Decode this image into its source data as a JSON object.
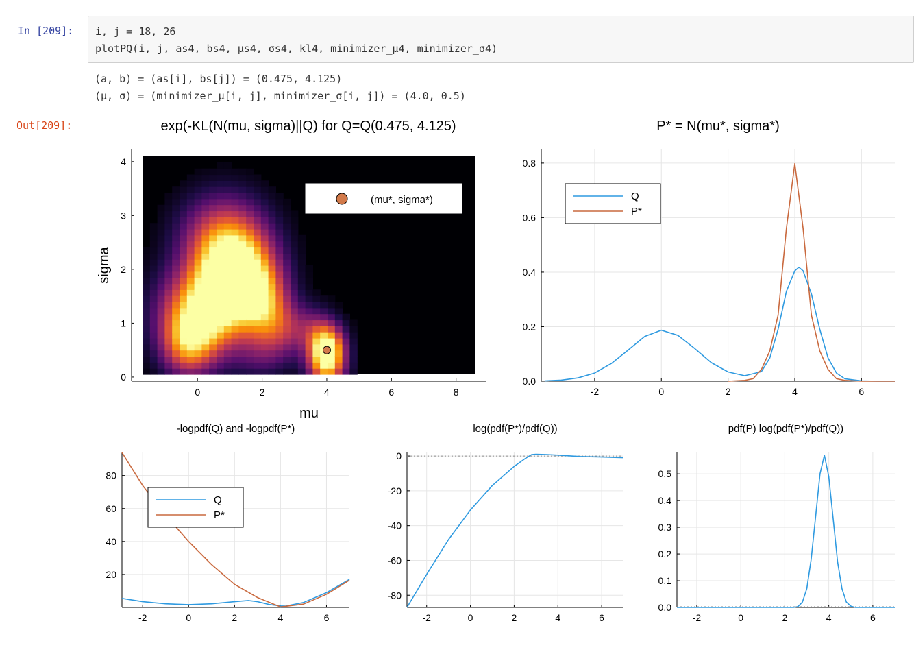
{
  "input_cell": {
    "prompt": "In [209]:",
    "lines": [
      "i, j = 18, 26",
      "plotPQ(i, j, as4, bs4, μs4, σs4, kl4, minimizer_μ4, minimizer_σ4)"
    ]
  },
  "stdout": [
    "(a, b) = (as[i], bs[j]) = (0.475, 4.125)",
    "(μ, σ) = (minimizer_μ[i, j], minimizer_σ[i, j]) = (4.0, 0.5)"
  ],
  "output_cell": {
    "prompt": "Out[209]:"
  },
  "colors": {
    "q": "#2f9ae0",
    "p": "#c9693e",
    "marker": "#d27a4a",
    "heatmap_bg": "#000004"
  },
  "chart_data": [
    {
      "type": "heatmap",
      "title": "exp(-KL(N(mu, sigma)||Q) for Q=Q(0.475, 4.125)",
      "xlabel": "mu",
      "ylabel": "sigma",
      "xlim": [
        -1.7,
        8.6
      ],
      "ylim": [
        0.05,
        4.1
      ],
      "xticks": [
        0,
        2,
        4,
        6,
        8
      ],
      "yticks": [
        0,
        1,
        2,
        3,
        4
      ],
      "colormap": "inferno",
      "marker": {
        "x": 4.0,
        "y": 0.5
      },
      "legend": {
        "placement": "top-right",
        "entries": [
          "(mu*, sigma*)"
        ]
      },
      "grid": false
    },
    {
      "type": "line",
      "title": "P* = N(mu*, sigma*)",
      "xlim": [
        -3.6,
        7
      ],
      "ylim": [
        0,
        0.85
      ],
      "xticks": [
        -2,
        0,
        2,
        4,
        6
      ],
      "yticks": [
        0.0,
        0.2,
        0.4,
        0.6,
        0.8
      ],
      "ytick_labels": [
        "0.0",
        "0.2",
        "0.4",
        "0.6",
        "0.8"
      ],
      "legend": {
        "placement": "top-left",
        "entries": [
          "Q",
          "P*"
        ]
      },
      "grid": true,
      "series": [
        {
          "name": "Q",
          "x": [
            -3.5,
            -3,
            -2.5,
            -2,
            -1.5,
            -1,
            -0.5,
            0,
            0.5,
            1,
            1.5,
            2,
            2.5,
            3,
            3.25,
            3.5,
            3.75,
            4,
            4.125,
            4.25,
            4.5,
            4.75,
            5,
            5.25,
            5.5,
            6,
            6.5,
            7
          ],
          "values": [
            0.001,
            0.004,
            0.012,
            0.03,
            0.065,
            0.114,
            0.164,
            0.187,
            0.168,
            0.12,
            0.068,
            0.034,
            0.02,
            0.035,
            0.085,
            0.19,
            0.33,
            0.405,
            0.418,
            0.405,
            0.32,
            0.19,
            0.085,
            0.03,
            0.009,
            0.001,
            0,
            0
          ]
        },
        {
          "name": "P*",
          "x": [
            2,
            2.5,
            2.75,
            3,
            3.25,
            3.5,
            3.75,
            4,
            4.25,
            4.5,
            4.75,
            5,
            5.25,
            5.5,
            6,
            6.5,
            7
          ],
          "values": [
            0,
            0.003,
            0.009,
            0.043,
            0.111,
            0.242,
            0.561,
            0.798,
            0.561,
            0.242,
            0.111,
            0.043,
            0.009,
            0.003,
            0,
            0,
            0
          ]
        }
      ]
    },
    {
      "type": "line",
      "title": "-logpdf(Q) and -logpdf(P*)",
      "xlim": [
        -2.9,
        7
      ],
      "ylim": [
        0,
        94
      ],
      "xticks": [
        -2,
        0,
        2,
        4,
        6
      ],
      "yticks": [
        20,
        40,
        60,
        80
      ],
      "legend": {
        "placement": "top-left",
        "entries": [
          "Q",
          "P*"
        ]
      },
      "grid": true,
      "series": [
        {
          "name": "Q",
          "x": [
            -2.9,
            -2,
            -1,
            0,
            1,
            2,
            2.6,
            3,
            3.5,
            4,
            4.2,
            5,
            6,
            7
          ],
          "values": [
            5.5,
            3.5,
            2.2,
            1.7,
            2.2,
            3.5,
            4.2,
            3.5,
            1.8,
            0.9,
            0.8,
            3,
            9,
            17
          ]
        },
        {
          "name": "P*",
          "x": [
            -2.9,
            -2,
            -1,
            0,
            1,
            2,
            3,
            4,
            5,
            6,
            7
          ],
          "values": [
            94,
            74,
            56,
            40,
            26,
            14,
            6,
            0.3,
            2,
            8,
            16.5
          ]
        }
      ]
    },
    {
      "type": "line",
      "title": "log(pdf(P*)/pdf(Q))",
      "xlim": [
        -2.9,
        7
      ],
      "ylim": [
        -87,
        2
      ],
      "xticks": [
        -2,
        0,
        2,
        4,
        6
      ],
      "yticks": [
        0,
        -20,
        -40,
        -60,
        -80
      ],
      "grid": true,
      "series": [
        {
          "name": "",
          "x": [
            -2.9,
            -2,
            -1,
            0,
            1,
            2,
            2.5,
            2.8,
            3,
            3.5,
            4,
            5,
            6,
            7
          ],
          "values": [
            -87,
            -68,
            -48,
            -31,
            -17,
            -6,
            -1.5,
            0.8,
            1,
            0.8,
            0.5,
            -0.3,
            -0.6,
            -1
          ]
        }
      ]
    },
    {
      "type": "line",
      "title": "pdf(P) log(pdf(P*)/pdf(Q))",
      "xlim": [
        -2.9,
        7
      ],
      "ylim": [
        0,
        0.58
      ],
      "xticks": [
        -2,
        0,
        2,
        4,
        6
      ],
      "yticks": [
        0.0,
        0.1,
        0.2,
        0.3,
        0.4,
        0.5
      ],
      "ytick_labels": [
        "0.0",
        "0.1",
        "0.2",
        "0.3",
        "0.4",
        "0.5"
      ],
      "grid": true,
      "series": [
        {
          "name": "",
          "x": [
            -2.9,
            2.4,
            2.6,
            2.8,
            3,
            3.2,
            3.4,
            3.6,
            3.8,
            4,
            4.2,
            4.4,
            4.6,
            4.8,
            5,
            5.2,
            7
          ],
          "values": [
            0,
            0,
            0.003,
            0.02,
            0.07,
            0.18,
            0.34,
            0.5,
            0.57,
            0.49,
            0.33,
            0.17,
            0.07,
            0.02,
            0.005,
            0,
            0
          ]
        }
      ]
    }
  ]
}
